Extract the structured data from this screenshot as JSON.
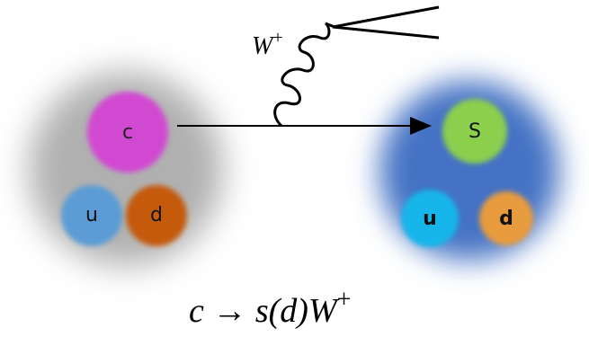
{
  "boson": {
    "label": "W",
    "charge": "+"
  },
  "left_hadron": {
    "particles": [
      "c",
      "u",
      "d"
    ]
  },
  "right_hadron": {
    "particles": [
      "S",
      "u",
      "d"
    ]
  },
  "equation": {
    "main": "c → s(d)W",
    "superscript": "+"
  }
}
